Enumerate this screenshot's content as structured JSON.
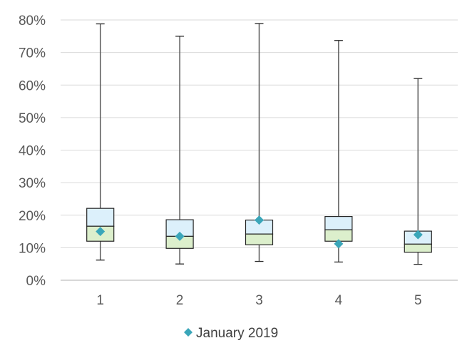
{
  "chart_data": {
    "type": "box",
    "categories": [
      "1",
      "2",
      "3",
      "4",
      "5"
    ],
    "y_ticks": [
      "0%",
      "10%",
      "20%",
      "30%",
      "40%",
      "50%",
      "60%",
      "70%",
      "80%"
    ],
    "ylim": [
      0,
      80
    ],
    "grid": true,
    "legend_position": "bottom",
    "boxes": [
      {
        "min": 6.2,
        "q1": 12.0,
        "median": 16.6,
        "q3": 22.1,
        "max": 78.8
      },
      {
        "min": 5.0,
        "q1": 9.8,
        "median": 13.5,
        "q3": 18.6,
        "max": 75.0
      },
      {
        "min": 5.8,
        "q1": 10.9,
        "median": 14.2,
        "q3": 18.5,
        "max": 78.9
      },
      {
        "min": 5.6,
        "q1": 12.0,
        "median": 15.5,
        "q3": 19.6,
        "max": 73.7
      },
      {
        "min": 4.9,
        "q1": 8.6,
        "median": 11.1,
        "q3": 15.1,
        "max": 62.0
      }
    ],
    "series": [
      {
        "name": "January 2019",
        "values": [
          15.0,
          13.5,
          18.5,
          11.2,
          14.0
        ]
      }
    ],
    "colors": {
      "upper_box": "#dcf0fb",
      "lower_box": "#dcefcc",
      "box_stroke": "#262626",
      "whisker": "#595959",
      "marker": "#3aa6b9",
      "grid": "#d9d9d9",
      "axis": "#bfbfbf"
    }
  }
}
